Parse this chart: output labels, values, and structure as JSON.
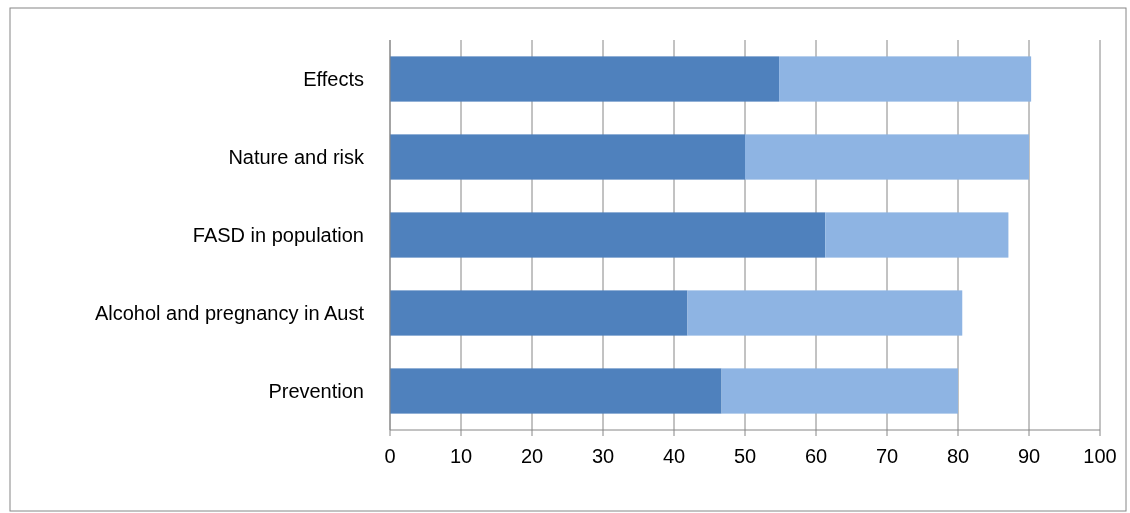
{
  "chart_data": {
    "type": "bar",
    "orientation": "horizontal",
    "stacked": true,
    "categories": [
      "Effects",
      "Nature and risk",
      "FASD in population",
      "Alcohol and pregnancy in Aust",
      "Prevention"
    ],
    "series": [
      {
        "color": "#4f81bd",
        "values": [
          54.8,
          50.0,
          61.3,
          41.9,
          46.7
        ]
      },
      {
        "color": "#8eb4e3",
        "values": [
          35.5,
          40.0,
          25.8,
          38.7,
          33.3
        ]
      }
    ],
    "xlim": [
      0,
      100
    ],
    "xticks": [
      0,
      10,
      20,
      30,
      40,
      50,
      60,
      70,
      80,
      90,
      100
    ],
    "grid": "x"
  }
}
